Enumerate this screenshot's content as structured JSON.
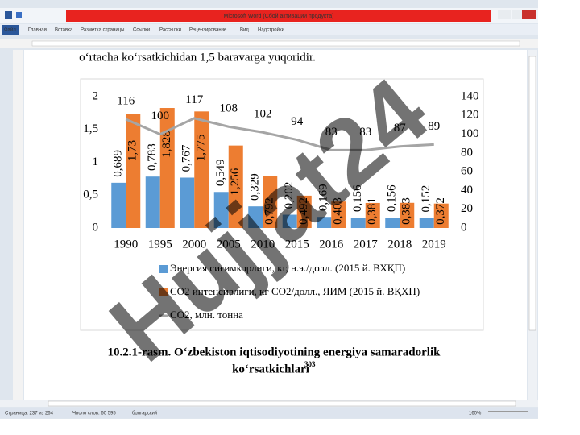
{
  "window": {
    "title": "Microsoft Word (Сбой активации продукта)",
    "tabs": [
      "Файл",
      "Главная",
      "Вставка",
      "Разметка страницы",
      "Ссылки",
      "Рассылки",
      "Рецензирование",
      "Вид",
      "Надстройки"
    ],
    "status": [
      "Страница: 237 из 264",
      "Число слов: 60 595",
      "болгарский",
      "160%"
    ]
  },
  "document": {
    "text": "o‘rtacha ko‘rsatkichidan 1,5 baravarga yuqoridir.",
    "caption": "10.2.1-rasm. O‘zbekiston iqtisodiyotining energiya samaradorlik",
    "caption_line2": "ko‘rsatkichlari",
    "footnote_ref": "303"
  },
  "watermark": "Hujjat24",
  "chart_data": {
    "type": "bar",
    "categories": [
      "1990",
      "1995",
      "2000",
      "2005",
      "2010",
      "2015",
      "2016",
      "2017",
      "2018",
      "2019"
    ],
    "series": [
      {
        "name": "Энергия сиғимкорлиги, кг, н.э./долл. (2015 й. ВХҚП)",
        "color": "#5b9bd5",
        "values": [
          0.689,
          0.783,
          0.767,
          0.549,
          0.329,
          0.202,
          0.169,
          0.156,
          0.156,
          0.152
        ],
        "value_labels": [
          "0,689",
          "0,783",
          "0,767",
          "0,549",
          "0,329",
          "0,202",
          "0,169",
          "0,156",
          "0,156",
          "0,152"
        ]
      },
      {
        "name": "CO2 интенсивлиги, кг CO2/долл., ЯИМ (2015 й. ВҚХП)",
        "color": "#ed7d31",
        "values": [
          1.73,
          1.828,
          1.775,
          1.256,
          0.792,
          0.492,
          0.403,
          0.381,
          0.383,
          0.372
        ],
        "value_labels": [
          "1,73",
          "1,828",
          "1,775",
          "1,256",
          "0,792",
          "0,492",
          "0,403",
          "0,381",
          "0,383",
          "0,372"
        ]
      },
      {
        "name": "CO2, млн. тонна",
        "color": "#a5a5a5",
        "type": "line",
        "axis": "y2",
        "values": [
          116,
          100,
          117,
          108,
          102,
          94,
          83,
          83,
          87,
          89
        ]
      }
    ],
    "ylim": [
      0,
      2
    ],
    "yticks": [
      0,
      {
        "value": 0.5,
        "label": "0,5"
      },
      1,
      {
        "value": 1.5,
        "label": "1,5"
      },
      2
    ],
    "y2lim": [
      0,
      140
    ],
    "y2ticks": [
      0,
      20,
      40,
      60,
      80,
      100,
      120,
      140
    ]
  }
}
